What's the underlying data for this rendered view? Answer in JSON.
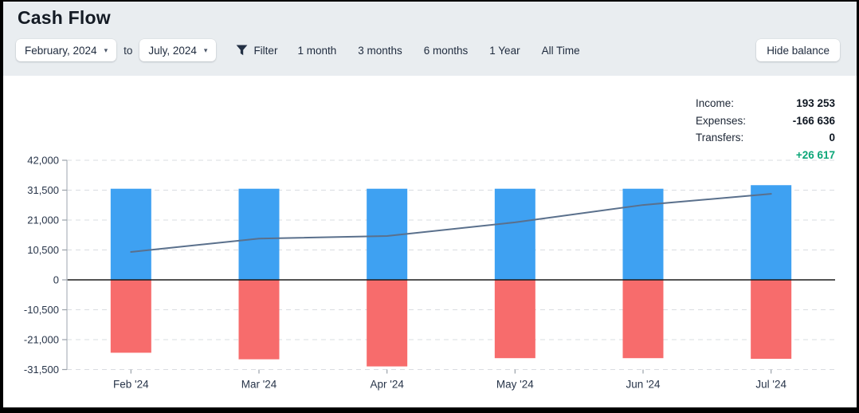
{
  "header": {
    "title": "Cash Flow",
    "from_value": "February, 2024",
    "to_label": "to",
    "to_value": "July, 2024",
    "caret": "▾",
    "filter_label": "Filter",
    "ranges": [
      "1 month",
      "3 months",
      "6 months",
      "1 Year",
      "All Time"
    ],
    "hide_balance_label": "Hide balance"
  },
  "summary": {
    "rows": [
      {
        "label": "Income:",
        "value": "193 253"
      },
      {
        "label": "Expenses:",
        "value": "-166 636"
      },
      {
        "label": "Transfers:",
        "value": "0"
      }
    ],
    "net": {
      "value": "+26 617",
      "color": "#0CA678"
    }
  },
  "chart_data": {
    "type": "bar",
    "subtype": "bar+line combo, bars diverging around zero",
    "title": "",
    "xlabel": "",
    "ylabel": "",
    "categories": [
      "Feb '24",
      "Mar '24",
      "Apr '24",
      "May '24",
      "Jun '24",
      "Jul '24"
    ],
    "series": [
      {
        "name": "income",
        "type": "bar",
        "color": "#3EA1F2",
        "values": [
          32000,
          32000,
          32000,
          32000,
          32000,
          33253
        ]
      },
      {
        "name": "expenses",
        "type": "bar",
        "color": "#F76C6C",
        "values": [
          -25600,
          -27900,
          -30400,
          -27500,
          -27500,
          -27736
        ]
      },
      {
        "name": "balance",
        "type": "line",
        "color": "#5A708C",
        "values": [
          9800,
          14500,
          15400,
          20200,
          26300,
          30200
        ]
      }
    ],
    "yticks": [
      42000,
      31500,
      21000,
      10500,
      0,
      -10500,
      -21000,
      -31500
    ],
    "ytick_labels": [
      "42,000",
      "31,500",
      "21,000",
      "10,500",
      "0",
      "-10,500",
      "-21,000",
      "-31,500"
    ],
    "ylim": [
      -31500,
      42000
    ],
    "grid": "dashed horizontal gridlines, solid black zero line",
    "legend": "none",
    "colors": {
      "grid": "#d9dce1",
      "zero_line": "#1c1c1c",
      "axis": "#b9bfc6",
      "tick": "#9aa1a9",
      "tick_text": "#273449"
    }
  }
}
